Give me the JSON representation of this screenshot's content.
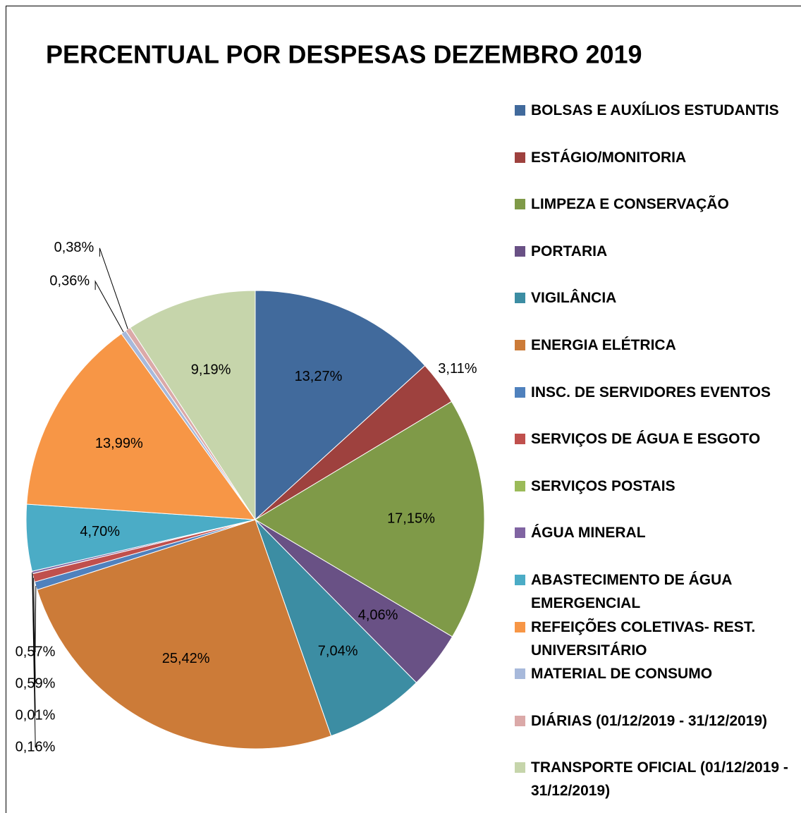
{
  "chart_data": {
    "type": "pie",
    "title": "PERCENTUAL POR DESPESAS DEZEMBRO 2019",
    "categories": [
      "BOLSAS E AUXÍLIOS ESTUDANTIS",
      "ESTÁGIO/MONITORIA",
      "LIMPEZA E CONSERVAÇÃO",
      "PORTARIA",
      "VIGILÂNCIA",
      "ENERGIA ELÉTRICA",
      "INSC. DE SERVIDORES EVENTOS",
      "SERVIÇOS DE ÁGUA E ESGOTO",
      "SERVIÇOS POSTAIS",
      "ÁGUA MINERAL",
      "ABASTECIMENTO DE ÁGUA EMERGENCIAL",
      "REFEIÇÕES COLETIVAS- REST. UNIVERSITÁRIO",
      "MATERIAL DE CONSUMO",
      "DIÁRIAS (01/12/2019 - 31/12/2019)",
      "TRANSPORTE OFICIAL (01/12/2019 - 31/12/2019)"
    ],
    "values": [
      13.27,
      3.11,
      17.15,
      4.06,
      7.04,
      25.42,
      0.57,
      0.59,
      0.01,
      0.16,
      4.7,
      13.99,
      0.36,
      0.38,
      9.19
    ],
    "value_labels": [
      "13,27%",
      "3,11%",
      "17,15%",
      "4,06%",
      "7,04%",
      "25,42%",
      "0,57%",
      "0,59%",
      "0,01%",
      "0,16%",
      "4,70%",
      "13,99%",
      "0,36%",
      "0,38%",
      "9,19%"
    ],
    "colors": [
      "#416a9c",
      "#9e413e",
      "#7f9a48",
      "#695185",
      "#3c8da3",
      "#cc7b38",
      "#4f81bd",
      "#c0504d",
      "#9bbb59",
      "#8064a2",
      "#4bacc6",
      "#f79646",
      "#a7b9db",
      "#dba9a8",
      "#c6d5ab"
    ],
    "legend": "right"
  }
}
